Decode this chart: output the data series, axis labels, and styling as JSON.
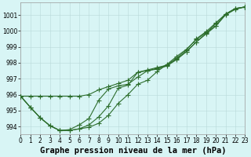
{
  "title": "Graphe pression niveau de la mer (hPa)",
  "bg_color": "#d8f5f5",
  "grid_color": "#b8dada",
  "line_color": "#2d6e2d",
  "xlim": [
    0,
    23
  ],
  "ylim": [
    993.5,
    1001.8
  ],
  "yticks": [
    994,
    995,
    996,
    997,
    998,
    999,
    1000,
    1001
  ],
  "xticks": [
    0,
    1,
    2,
    3,
    4,
    5,
    6,
    7,
    8,
    9,
    10,
    11,
    12,
    13,
    14,
    15,
    16,
    17,
    18,
    19,
    20,
    21,
    22,
    23
  ],
  "lines": [
    [
      995.9,
      995.9,
      995.9,
      995.9,
      995.9,
      995.9,
      995.9,
      996.0,
      996.3,
      996.5,
      996.7,
      996.9,
      997.4,
      997.5,
      997.6,
      997.8,
      998.2,
      998.7,
      999.3,
      999.8,
      1000.3,
      1001.0,
      1001.35,
      1001.5
    ],
    [
      995.9,
      995.2,
      994.55,
      994.05,
      993.75,
      993.75,
      993.85,
      994.1,
      994.6,
      995.3,
      996.4,
      996.6,
      997.4,
      997.55,
      997.7,
      997.85,
      998.25,
      998.7,
      999.3,
      999.85,
      1000.45,
      1001.05,
      1001.4,
      1001.5
    ],
    [
      995.9,
      995.2,
      994.55,
      994.05,
      993.75,
      993.75,
      993.85,
      993.95,
      994.2,
      994.7,
      995.45,
      996.0,
      996.65,
      996.9,
      997.45,
      997.9,
      998.4,
      998.85,
      999.45,
      999.9,
      1000.3,
      1001.05,
      1001.4,
      1001.5
    ],
    [
      995.9,
      995.2,
      994.55,
      994.05,
      993.75,
      993.8,
      994.1,
      994.5,
      995.65,
      996.35,
      996.55,
      996.65,
      997.1,
      997.5,
      997.65,
      997.85,
      998.3,
      998.8,
      999.5,
      999.95,
      1000.5,
      1001.05,
      1001.4,
      1001.5
    ]
  ],
  "title_fontsize": 7.5,
  "tick_fontsize": 5.5,
  "linewidth": 0.8,
  "markersize": 2.2,
  "figsize": [
    3.2,
    2.0
  ],
  "dpi": 100
}
